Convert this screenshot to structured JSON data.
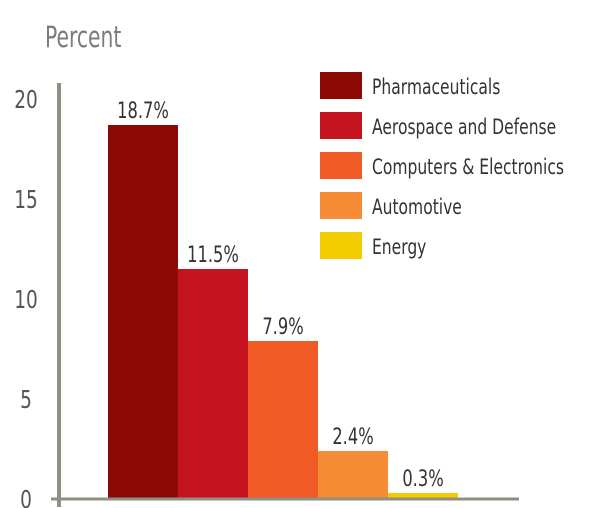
{
  "chart_data": {
    "type": "bar",
    "title": "",
    "xlabel": "",
    "ylabel": "Percent",
    "ylim": [
      0,
      20
    ],
    "yticks": [
      0,
      5,
      10,
      15,
      20
    ],
    "grid": false,
    "legend_position": "top-right",
    "categories": [
      "Pharmaceuticals",
      "Aerospace and Defense",
      "Computers & Electronics",
      "Automotive",
      "Energy"
    ],
    "values": [
      18.7,
      11.5,
      7.9,
      2.4,
      0.3
    ],
    "data_labels": [
      "18.7%",
      "11.5%",
      "7.9%",
      "2.4%",
      "0.3%"
    ],
    "colors": [
      "#8b0b04",
      "#c5121f",
      "#f05a24",
      "#f68d36",
      "#f0cc00"
    ],
    "axis_color": "#8f8f85"
  }
}
